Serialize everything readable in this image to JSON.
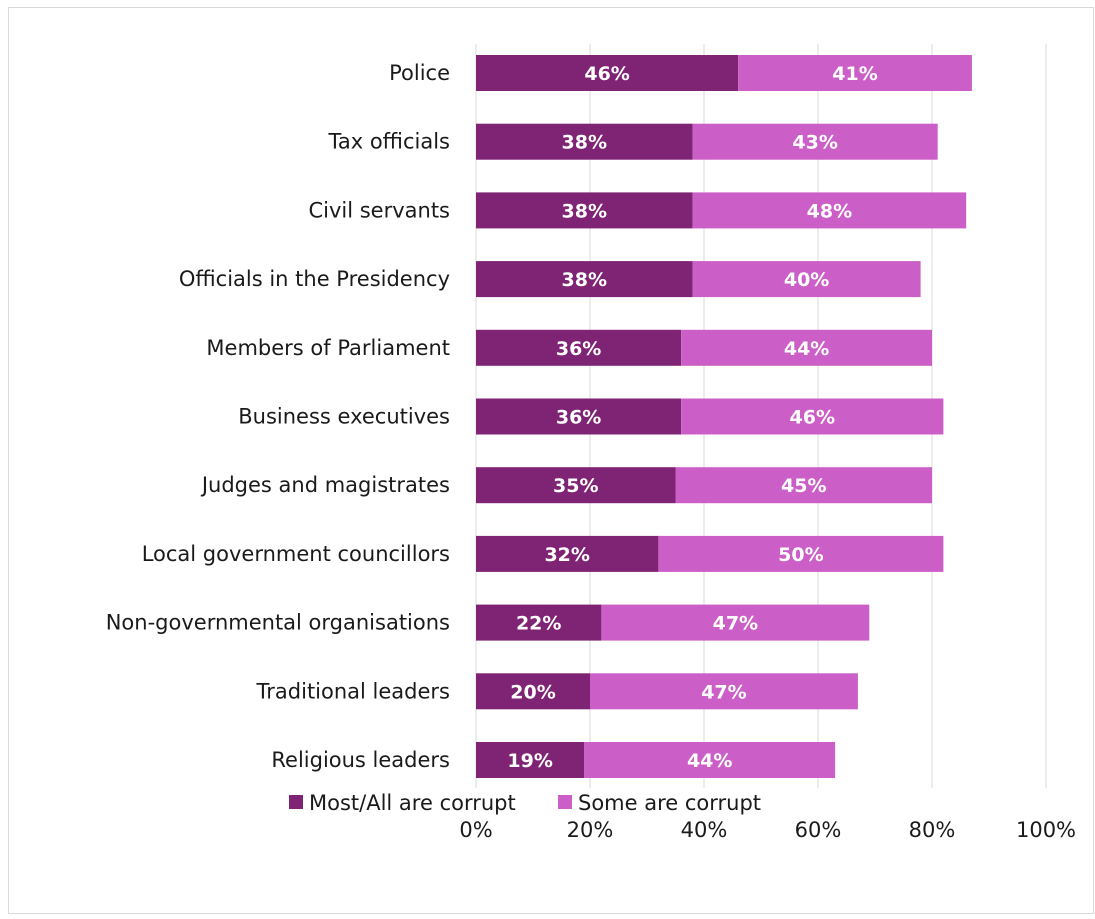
{
  "chart_data": {
    "type": "bar",
    "orientation": "horizontal",
    "stacked": true,
    "categories": [
      "Police",
      "Tax officials",
      "Civil servants",
      "Officials in the Presidency",
      "Members of Parliament",
      "Business executives",
      "Judges and magistrates",
      "Local government councillors",
      "Non-governmental organisations",
      "Traditional leaders",
      "Religious leaders"
    ],
    "series": [
      {
        "name": "Most/All are corrupt",
        "color": "#7f2375",
        "values": [
          46,
          38,
          38,
          38,
          36,
          36,
          35,
          32,
          22,
          20,
          19
        ],
        "labels": [
          "46%",
          "38%",
          "38%",
          "38%",
          "36%",
          "36%",
          "35%",
          "32%",
          "22%",
          "20%",
          "19%"
        ]
      },
      {
        "name": "Some are corrupt",
        "color": "#cc5fc7",
        "values": [
          41,
          43,
          48,
          40,
          44,
          46,
          45,
          50,
          47,
          47,
          44
        ],
        "labels": [
          "41%",
          "43%",
          "48%",
          "40%",
          "44%",
          "46%",
          "45%",
          "50%",
          "47%",
          "47%",
          "44%"
        ]
      }
    ],
    "xlim": [
      0,
      100
    ],
    "x_ticks": [
      0,
      20,
      40,
      60,
      80,
      100
    ],
    "x_tick_labels": [
      "0%",
      "20%",
      "40%",
      "60%",
      "80%",
      "100%"
    ],
    "grid": true,
    "legend_position": "bottom",
    "title": "",
    "xlabel": "",
    "ylabel": ""
  }
}
